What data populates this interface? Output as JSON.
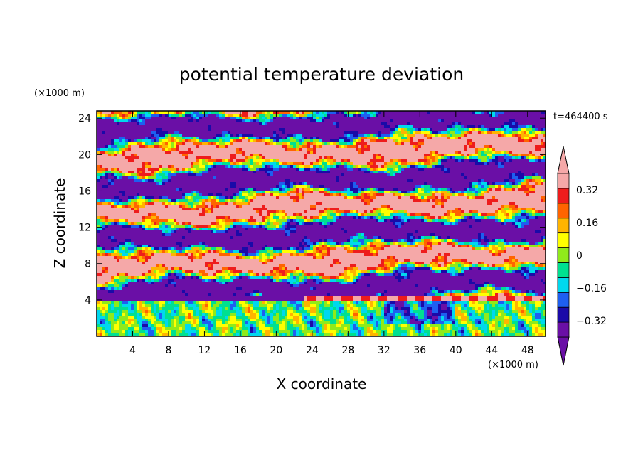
{
  "chart_data": {
    "type": "heatmap",
    "title": "potential temperature deviation",
    "xlabel": "X coordinate",
    "ylabel": "Z coordinate",
    "x_unit": "(×1000 m)",
    "y_unit": "(×1000 m)",
    "time_label": "t=464400 s",
    "xlim": [
      0,
      50
    ],
    "ylim": [
      0,
      24.8
    ],
    "x_ticks": [
      "4",
      "8",
      "12",
      "16",
      "20",
      "24",
      "28",
      "32",
      "36",
      "40",
      "44",
      "48"
    ],
    "x_tick_values": [
      4,
      8,
      12,
      16,
      20,
      24,
      28,
      32,
      36,
      40,
      44,
      48
    ],
    "y_ticks": [
      "4",
      "8",
      "12",
      "16",
      "20",
      "24"
    ],
    "y_tick_values": [
      4,
      8,
      12,
      16,
      20,
      24
    ],
    "colorbar": {
      "levels": [
        -0.4,
        -0.32,
        -0.24,
        -0.16,
        -0.08,
        0,
        0.08,
        0.16,
        0.24,
        0.32,
        0.4
      ],
      "labels": [
        "0.32",
        "0.16",
        "0",
        "−0.16",
        "−0.32"
      ],
      "label_values": [
        0.32,
        0.16,
        0,
        -0.16,
        -0.32
      ],
      "colors": [
        "#6a0fa6",
        "#1a0aa8",
        "#1e5ff0",
        "#00d8ee",
        "#00e090",
        "#90ea1a",
        "#ffff00",
        "#ffb400",
        "#ff6400",
        "#ee1c1c",
        "#f5a8a8"
      ],
      "over_color": "#f5a8a8",
      "under_color": "#6a0fa6"
    }
  }
}
